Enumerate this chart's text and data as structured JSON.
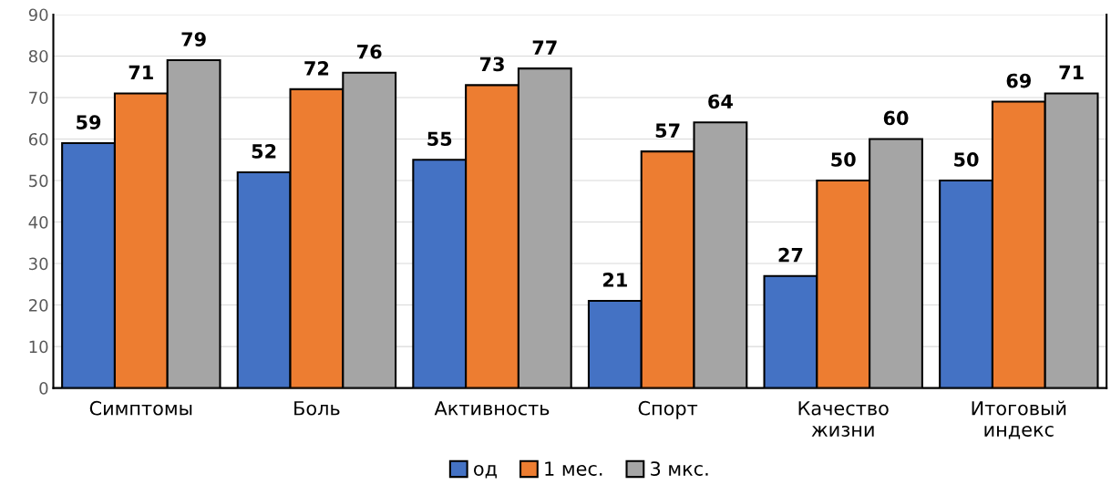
{
  "chart_data": {
    "type": "bar",
    "categories": [
      "Симптомы",
      "Боль",
      "Активность",
      "Спорт",
      "Качество\nжизни",
      "Итоговый\nиндекс"
    ],
    "series": [
      {
        "name": "од",
        "color": "#4472c4",
        "values": [
          59,
          52,
          55,
          21,
          27,
          50
        ]
      },
      {
        "name": "1 мес.",
        "color": "#ed7d31",
        "values": [
          71,
          72,
          73,
          57,
          50,
          69
        ]
      },
      {
        "name": "3 мкс.",
        "color": "#a5a5a5",
        "values": [
          79,
          76,
          77,
          64,
          60,
          71
        ]
      }
    ],
    "ylim": [
      0,
      90
    ],
    "yticks": [
      0,
      10,
      20,
      30,
      40,
      50,
      60,
      70,
      80,
      90
    ],
    "grid": "y",
    "legend": "bottom",
    "data_labels": true
  }
}
